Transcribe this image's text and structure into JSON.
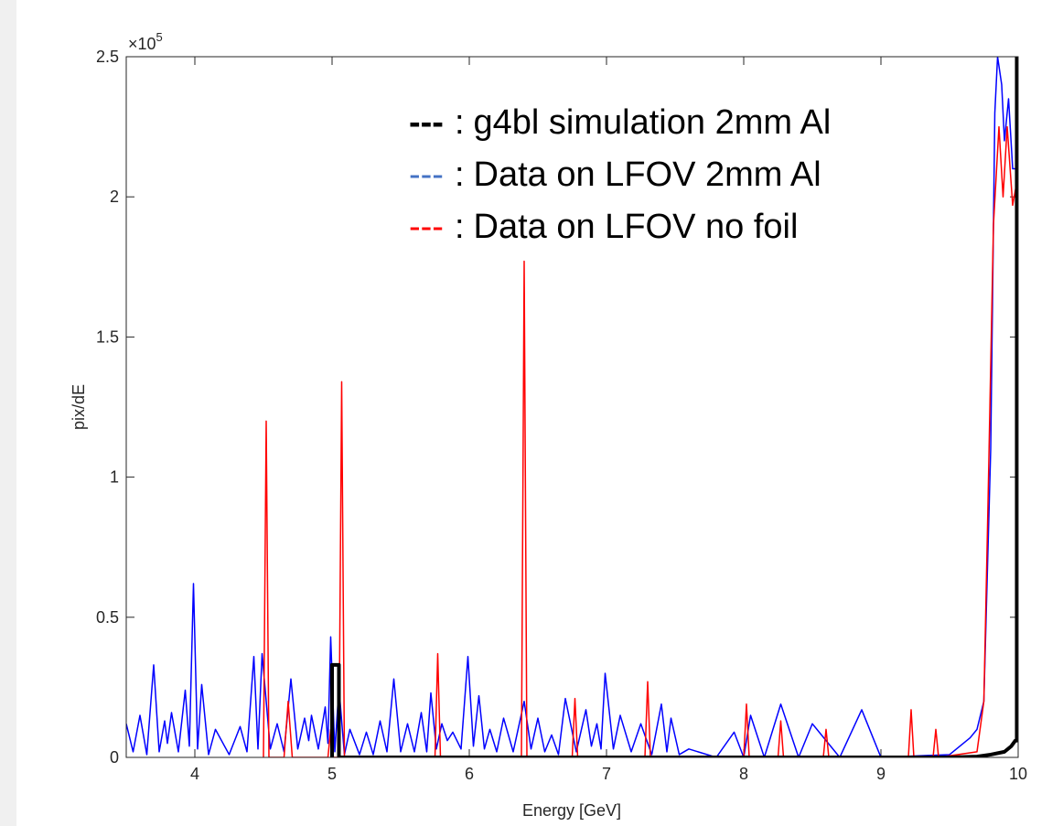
{
  "chart_data": {
    "type": "line",
    "x_label": "Energy [GeV]",
    "y_label": "pix/dE",
    "y_exponent": {
      "base": "×10",
      "power": "5"
    },
    "xlim": [
      3.5,
      10
    ],
    "ylim": [
      0,
      2.5
    ],
    "xticks": [
      4,
      5,
      6,
      7,
      8,
      9,
      10
    ],
    "yticks": [
      0,
      0.5,
      1,
      1.5,
      2,
      2.5
    ],
    "legend_marker": "---",
    "legend_separator": ":",
    "series": [
      {
        "name": "g4bl simulation 2mm Al",
        "color": "#000000",
        "width": 4,
        "x": [
          5.0,
          5.0,
          5.05,
          5.05,
          9.5,
          9.7,
          9.8,
          9.9,
          9.95,
          9.98,
          9.99,
          9.99
        ],
        "values": [
          0,
          0.33,
          0.33,
          0,
          0,
          0.003,
          0.01,
          0.02,
          0.04,
          0.06,
          0.06,
          2.5
        ]
      },
      {
        "name": "Data on LFOV 2mm Al",
        "color": "#0000ff",
        "width": 1.5,
        "x": [
          3.5,
          3.55,
          3.6,
          3.65,
          3.7,
          3.74,
          3.78,
          3.8,
          3.83,
          3.88,
          3.93,
          3.96,
          3.99,
          4.02,
          4.05,
          4.1,
          4.15,
          4.25,
          4.33,
          4.38,
          4.43,
          4.46,
          4.49,
          4.55,
          4.6,
          4.65,
          4.7,
          4.75,
          4.8,
          4.83,
          4.85,
          4.9,
          4.95,
          4.97,
          4.99,
          5.02,
          5.05,
          5.09,
          5.13,
          5.2,
          5.25,
          5.3,
          5.35,
          5.4,
          5.45,
          5.5,
          5.55,
          5.6,
          5.65,
          5.69,
          5.72,
          5.76,
          5.8,
          5.84,
          5.88,
          5.94,
          5.99,
          6.03,
          6.07,
          6.11,
          6.15,
          6.2,
          6.25,
          6.32,
          6.4,
          6.45,
          6.5,
          6.55,
          6.6,
          6.65,
          6.7,
          6.78,
          6.85,
          6.89,
          6.93,
          6.96,
          6.99,
          7.05,
          7.1,
          7.18,
          7.25,
          7.33,
          7.4,
          7.44,
          7.47,
          7.53,
          7.6,
          7.8,
          7.93,
          8.0,
          8.05,
          8.15,
          8.27,
          8.4,
          8.5,
          8.7,
          8.86,
          9.0,
          9.5,
          9.65,
          9.7,
          9.75,
          9.8,
          9.83,
          9.85,
          9.88,
          9.9,
          9.93,
          9.96,
          10
        ],
        "values": [
          0.12,
          0.02,
          0.15,
          0.01,
          0.33,
          0.02,
          0.13,
          0.05,
          0.16,
          0.02,
          0.24,
          0.04,
          0.62,
          0.03,
          0.26,
          0.01,
          0.1,
          0.01,
          0.11,
          0.02,
          0.36,
          0.03,
          0.37,
          0.03,
          0.12,
          0.02,
          0.28,
          0.03,
          0.14,
          0.06,
          0.15,
          0.03,
          0.18,
          0.05,
          0.43,
          0.02,
          0.25,
          0.01,
          0.1,
          0.01,
          0.09,
          0.01,
          0.13,
          0.02,
          0.28,
          0.02,
          0.12,
          0.02,
          0.16,
          0.02,
          0.23,
          0.03,
          0.12,
          0.06,
          0.09,
          0.03,
          0.36,
          0.04,
          0.22,
          0.03,
          0.1,
          0.02,
          0.14,
          0.02,
          0.2,
          0.03,
          0.14,
          0.02,
          0.08,
          0.01,
          0.21,
          0.02,
          0.17,
          0.04,
          0.12,
          0.03,
          0.3,
          0.03,
          0.15,
          0.02,
          0.12,
          0.01,
          0.19,
          0.02,
          0.14,
          0.01,
          0.03,
          0,
          0.09,
          0,
          0.15,
          0,
          0.19,
          0,
          0.12,
          0,
          0.17,
          0,
          0.01,
          0.07,
          0.1,
          0.2,
          1.1,
          2.3,
          2.5,
          2.4,
          2.2,
          2.35,
          2.1,
          2.1
        ]
      },
      {
        "name": "Data on LFOV no foil",
        "color": "#ff0000",
        "width": 1.5,
        "x": [
          4.5,
          4.52,
          4.54,
          4.65,
          4.68,
          4.71,
          4.97,
          4.99,
          5.01,
          5.05,
          5.07,
          5.09,
          5.75,
          5.77,
          5.79,
          6.38,
          6.4,
          6.42,
          6.75,
          6.77,
          6.79,
          7.28,
          7.3,
          7.32,
          8.0,
          8.02,
          8.04,
          8.25,
          8.27,
          8.29,
          8.58,
          8.6,
          8.62,
          9.2,
          9.22,
          9.24,
          9.38,
          9.4,
          9.42,
          9.7,
          9.75,
          9.78,
          9.82,
          9.86,
          9.89,
          9.92,
          9.96,
          10
        ],
        "values": [
          0,
          1.2,
          0,
          0,
          0.2,
          0,
          0,
          0.1,
          0,
          0,
          1.34,
          0,
          0,
          0.37,
          0,
          0,
          1.77,
          0,
          0,
          0.21,
          0,
          0,
          0.27,
          0,
          0,
          0.19,
          0,
          0,
          0.13,
          0,
          0,
          0.1,
          0,
          0,
          0.17,
          0,
          0,
          0.1,
          0,
          0.02,
          0.2,
          0.9,
          1.9,
          2.25,
          2.0,
          2.25,
          1.97,
          2.08
        ]
      }
    ],
    "legend_colors": [
      "#000000",
      "#4472c4",
      "#ff0000"
    ]
  }
}
